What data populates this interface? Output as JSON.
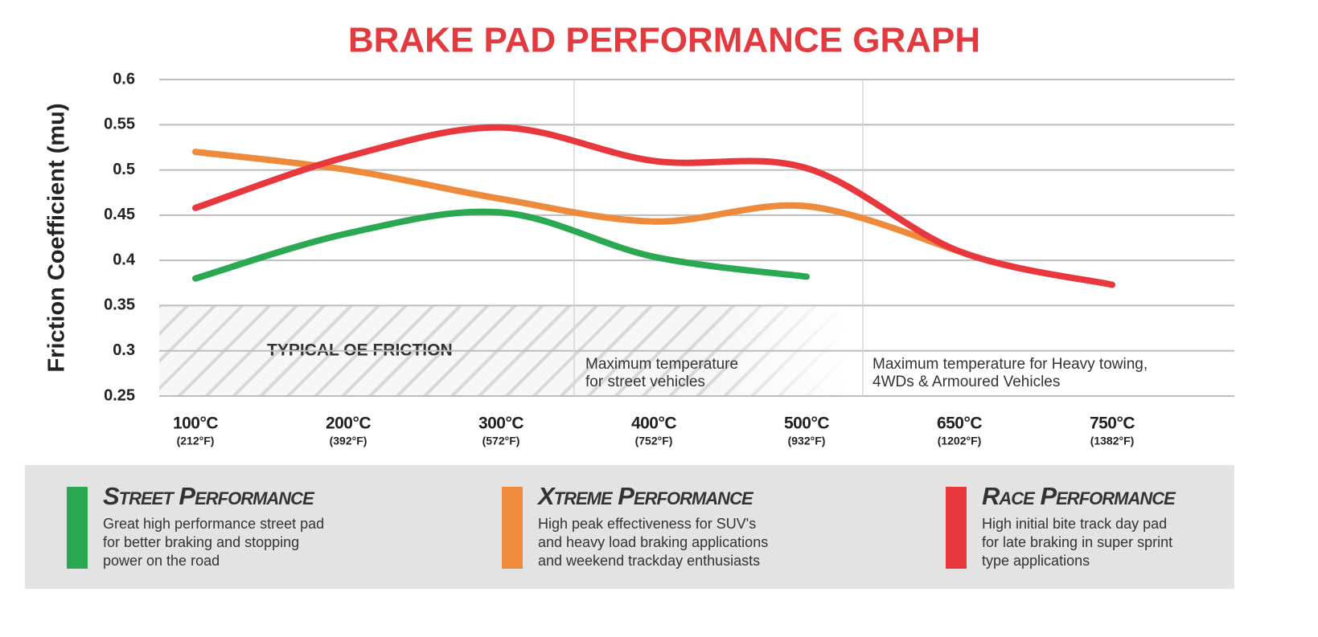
{
  "chart_data": {
    "type": "line",
    "title": "BRAKE PAD PERFORMANCE GRAPH",
    "y_label": "Friction Coefficient (mu)",
    "categories": [
      "100°C",
      "200°C",
      "300°C",
      "400°C",
      "500°C",
      "650°C",
      "750°C"
    ],
    "category_sublabels": [
      "(212°F)",
      "(392°F)",
      "(572°F)",
      "(752°F)",
      "(932°F)",
      "(1202°F)",
      "(1382°F)"
    ],
    "ylim": [
      0.25,
      0.6
    ],
    "yticks": [
      0.6,
      0.55,
      0.5,
      0.45,
      0.4,
      0.35,
      0.3,
      0.25
    ],
    "grid": true,
    "band": {
      "label": "TYPICAL OE FRICTION",
      "range": [
        0.25,
        0.35
      ]
    },
    "annotations": [
      {
        "lines": [
          "Maximum temperature",
          "for street vehicles"
        ]
      },
      {
        "lines": [
          "Maximum temperature for Heavy towing,",
          "4WDs & Armoured Vehicles"
        ]
      }
    ],
    "series": [
      {
        "name": "Street Performance",
        "color": "#2aa852",
        "values": [
          0.38,
          0.43,
          0.453,
          0.404,
          0.382,
          null,
          null
        ],
        "description": [
          "Great high performance street pad",
          "for better braking and stopping",
          "power on the road"
        ]
      },
      {
        "name": "Xtreme Performance",
        "color": "#ee8a3c",
        "values": [
          0.52,
          0.5,
          0.468,
          0.443,
          0.46,
          0.41,
          null
        ],
        "description": [
          "High peak effectiveness for SUV's",
          "and heavy load braking applications",
          "and weekend trackday enthusiasts"
        ]
      },
      {
        "name": "Race Performance",
        "color": "#e8383d",
        "values": [
          0.458,
          0.515,
          0.547,
          0.51,
          0.502,
          0.41,
          0.373
        ],
        "description": [
          "High initial bite track day pad",
          "for late braking in super sprint",
          "type applications"
        ]
      }
    ]
  }
}
